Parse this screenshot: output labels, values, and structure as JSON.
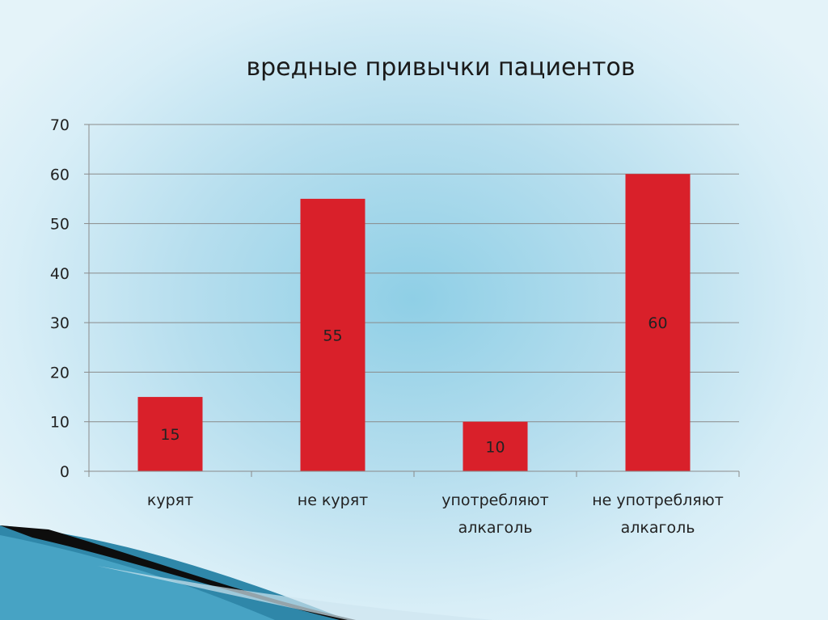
{
  "chart_data": {
    "type": "bar",
    "title": "вредные привычки пациентов",
    "categories": [
      [
        "курят"
      ],
      [
        "не курят"
      ],
      [
        "употребляют",
        "алкаголь"
      ],
      [
        "не употребляют",
        "алкаголь"
      ]
    ],
    "values": [
      15,
      55,
      10,
      60
    ],
    "ylim": [
      0,
      70
    ],
    "yticks": [
      0,
      10,
      20,
      30,
      40,
      50,
      60,
      70
    ],
    "grid": true,
    "legend": "none",
    "bar_color": "#d9202a",
    "grid_color": "#8a8a8a"
  }
}
